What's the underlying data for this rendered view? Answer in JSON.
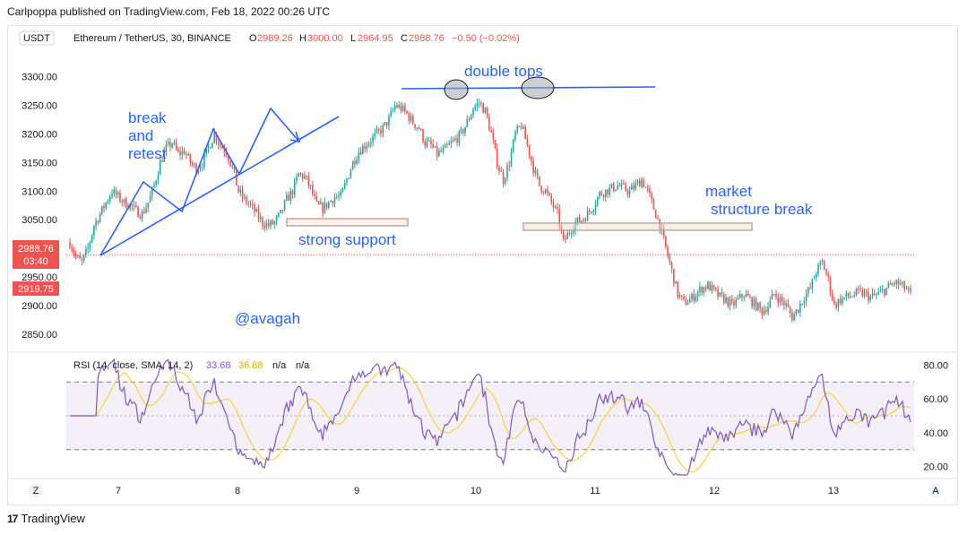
{
  "header": {
    "published_by": "Carlpoppa published on TradingView.com, Feb 18, 2022 00:26 UTC"
  },
  "footer": {
    "brand": "TradingView",
    "logo": "17"
  },
  "colors": {
    "up": "#26a69a",
    "down": "#ef5350",
    "annotation": "#2962ff",
    "rsi": "#7e57c2",
    "rsi_ma": "#f5d33c",
    "current_line": "#ef5350"
  },
  "chart_data": [
    {
      "type": "candlestick",
      "legend": {
        "currency_btn": "USDT",
        "symbol": "Ethereum / TetherUS, 30, BINANCE",
        "o_label": "O",
        "o_value": "2989.26",
        "h_label": "H",
        "h_value": "3000.00",
        "l_label": "L",
        "l_value": "2964.95",
        "c_label": "C",
        "c_value": "2988.76",
        "change": "−0.50 (−0.02%)"
      },
      "y_ticks": [
        "3300.00",
        "3250.00",
        "3200.00",
        "3150.00",
        "3100.00",
        "3050.00",
        "3000.00",
        "2950.00",
        "2900.00",
        "2850.00"
      ],
      "y_tick_values": [
        3300,
        3250,
        3200,
        3150,
        3100,
        3050,
        3000,
        2950,
        2900,
        2850
      ],
      "ylim": [
        2820,
        3345
      ],
      "x_ticks": [
        "7",
        "8",
        "9",
        "10",
        "11",
        "12",
        "13"
      ],
      "price_labels": {
        "current": "2988.76",
        "countdown": "03:40",
        "low_mark": "2919.75"
      },
      "current_value": 2988.76,
      "low_mark_value": 2919.75,
      "path_points": [
        [
          0,
          3010
        ],
        [
          3,
          2985
        ],
        [
          6,
          2975
        ],
        [
          9,
          3000
        ],
        [
          12,
          3040
        ],
        [
          15,
          3060
        ],
        [
          18,
          3080
        ],
        [
          21,
          3100
        ],
        [
          24,
          3090
        ],
        [
          27,
          3080
        ],
        [
          30,
          3075
        ],
        [
          33,
          3065
        ],
        [
          36,
          3060
        ],
        [
          39,
          3080
        ],
        [
          42,
          3110
        ],
        [
          45,
          3150
        ],
        [
          48,
          3175
        ],
        [
          51,
          3185
        ],
        [
          54,
          3165
        ],
        [
          57,
          3170
        ],
        [
          60,
          3150
        ],
        [
          63,
          3140
        ],
        [
          66,
          3150
        ],
        [
          69,
          3175
        ],
        [
          72,
          3200
        ],
        [
          75,
          3180
        ],
        [
          78,
          3170
        ],
        [
          81,
          3140
        ],
        [
          84,
          3100
        ],
        [
          87,
          3085
        ],
        [
          90,
          3075
        ],
        [
          93,
          3060
        ],
        [
          96,
          3045
        ],
        [
          99,
          3040
        ],
        [
          102,
          3045
        ],
        [
          105,
          3060
        ],
        [
          108,
          3085
        ],
        [
          111,
          3100
        ],
        [
          114,
          3130
        ],
        [
          117,
          3125
        ],
        [
          120,
          3105
        ],
        [
          123,
          3075
        ],
        [
          126,
          3070
        ],
        [
          129,
          3080
        ],
        [
          132,
          3090
        ],
        [
          135,
          3090
        ],
        [
          138,
          3120
        ],
        [
          141,
          3150
        ],
        [
          144,
          3170
        ],
        [
          147,
          3180
        ],
        [
          150,
          3190
        ],
        [
          153,
          3200
        ],
        [
          156,
          3210
        ],
        [
          159,
          3225
        ],
        [
          162,
          3250
        ],
        [
          165,
          3245
        ],
        [
          168,
          3235
        ],
        [
          171,
          3220
        ],
        [
          174,
          3210
        ],
        [
          177,
          3185
        ],
        [
          180,
          3180
        ],
        [
          183,
          3165
        ],
        [
          186,
          3170
        ],
        [
          189,
          3180
        ],
        [
          192,
          3190
        ],
        [
          195,
          3200
        ],
        [
          198,
          3220
        ],
        [
          201,
          3245
        ],
        [
          204,
          3255
        ],
        [
          207,
          3240
        ],
        [
          210,
          3200
        ],
        [
          213,
          3150
        ],
        [
          216,
          3120
        ],
        [
          219,
          3150
        ],
        [
          222,
          3200
        ],
        [
          225,
          3215
        ],
        [
          228,
          3180
        ],
        [
          231,
          3140
        ],
        [
          234,
          3110
        ],
        [
          237,
          3100
        ],
        [
          240,
          3080
        ],
        [
          243,
          3060
        ],
        [
          246,
          3010
        ],
        [
          249,
          3030
        ],
        [
          252,
          3045
        ],
        [
          255,
          3050
        ],
        [
          258,
          3060
        ],
        [
          261,
          3075
        ],
        [
          264,
          3095
        ],
        [
          267,
          3100
        ],
        [
          270,
          3105
        ],
        [
          273,
          3110
        ],
        [
          276,
          3105
        ],
        [
          279,
          3100
        ],
        [
          282,
          3110
        ],
        [
          285,
          3120
        ],
        [
          288,
          3100
        ],
        [
          291,
          3070
        ],
        [
          294,
          3040
        ],
        [
          297,
          3000
        ],
        [
          300,
          2960
        ],
        [
          303,
          2920
        ],
        [
          306,
          2905
        ],
        [
          309,
          2910
        ],
        [
          312,
          2920
        ],
        [
          315,
          2930
        ],
        [
          318,
          2935
        ],
        [
          321,
          2925
        ],
        [
          324,
          2915
        ],
        [
          327,
          2910
        ],
        [
          330,
          2900
        ],
        [
          333,
          2910
        ],
        [
          336,
          2920
        ],
        [
          339,
          2910
        ],
        [
          342,
          2900
        ],
        [
          345,
          2890
        ],
        [
          348,
          2900
        ],
        [
          351,
          2920
        ],
        [
          354,
          2910
        ],
        [
          357,
          2900
        ],
        [
          360,
          2880
        ],
        [
          363,
          2895
        ],
        [
          366,
          2915
        ],
        [
          369,
          2930
        ],
        [
          372,
          2960
        ],
        [
          375,
          2975
        ],
        [
          378,
          2945
        ],
        [
          381,
          2900
        ],
        [
          384,
          2910
        ],
        [
          387,
          2915
        ],
        [
          390,
          2918
        ],
        [
          393,
          2922
        ],
        [
          396,
          2920
        ],
        [
          399,
          2915
        ],
        [
          402,
          2918
        ],
        [
          405,
          2925
        ],
        [
          408,
          2932
        ],
        [
          411,
          2940
        ],
        [
          414,
          2936
        ],
        [
          417,
          2928
        ],
        [
          419,
          2919
        ]
      ],
      "annotations": {
        "break_and_retest": [
          "break",
          "and",
          "retest"
        ],
        "double_tops": "double tops",
        "strong_support": "strong support",
        "market_structure_break": [
          "market",
          "structure break"
        ],
        "watermark": "@avagah"
      }
    },
    {
      "type": "line",
      "legend": {
        "title": "RSI (14, close, SMA, 14, 2)",
        "rsi_value": "33.68",
        "ma_value": "36.88",
        "na1": "n/a",
        "na2": "n/a"
      },
      "y_ticks": [
        "80.00",
        "60.00",
        "40.00",
        "20.00"
      ],
      "y_tick_values": [
        80,
        60,
        40,
        20
      ],
      "ylim": [
        14,
        86
      ],
      "band": [
        30,
        70
      ],
      "mid": 50,
      "scale_buttons": {
        "left": "Z",
        "right": "A"
      }
    }
  ]
}
